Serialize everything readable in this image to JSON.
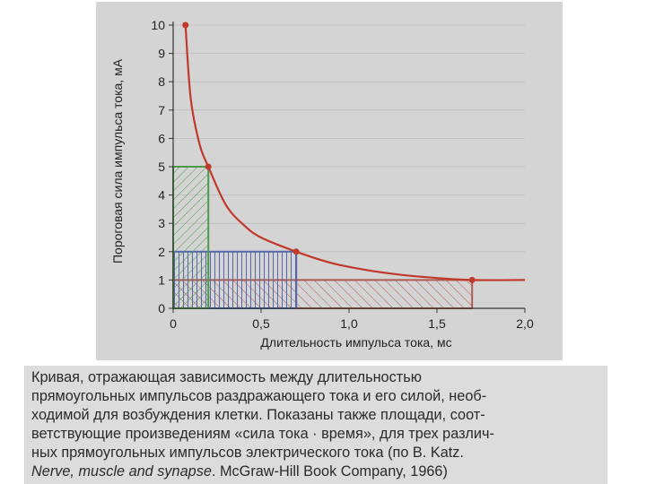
{
  "chart_data": {
    "type": "line",
    "xlabel": "Длительность импульса тока, мс",
    "ylabel": "Пороговая сила импульса тока, мА",
    "xlim": [
      0,
      2.0
    ],
    "ylim": [
      0,
      10
    ],
    "x_ticks": [
      "0",
      "0,5",
      "1,0",
      "1,5",
      "2,0"
    ],
    "y_ticks": [
      "0",
      "1",
      "2",
      "3",
      "4",
      "5",
      "6",
      "7",
      "8",
      "9",
      "10"
    ],
    "curve": {
      "x": [
        0.07,
        0.1,
        0.15,
        0.2,
        0.3,
        0.4,
        0.5,
        0.7,
        0.9,
        1.1,
        1.3,
        1.5,
        1.7,
        2.0
      ],
      "y": [
        10,
        7.4,
        5.8,
        5.0,
        3.65,
        2.95,
        2.5,
        2.0,
        1.6,
        1.35,
        1.18,
        1.07,
        1.0,
        1.0
      ]
    },
    "marked_points": [
      {
        "x": 0.07,
        "y": 10
      },
      {
        "x": 0.2,
        "y": 5
      },
      {
        "x": 0.7,
        "y": 2
      },
      {
        "x": 1.7,
        "y": 1
      }
    ],
    "rectangles": [
      {
        "x": 0.2,
        "y": 5,
        "color": "#4a9a4a"
      },
      {
        "x": 0.7,
        "y": 2,
        "color": "#5566aa"
      },
      {
        "x": 1.7,
        "y": 1,
        "color": "#b05a50"
      }
    ],
    "curve_color": "#c0392b"
  },
  "caption": {
    "line1": "Кривая, отражающая зависимость между длительностью",
    "line2": "прямоугольных импульсов раздражающего тока и его силой, необ-",
    "line3": "ходимой для возбуждения клетки. Показаны также площади, соот-",
    "line4": "ветствующие произведениям «сила тока · время», для трех различ-",
    "line5": "ных прямоугольных импульсов электрического тока (по B. Katz.",
    "line6_italic": "Nerve, muscle and synapse",
    "line6_rest": ". McGraw-Hill Book Company, 1966)"
  }
}
